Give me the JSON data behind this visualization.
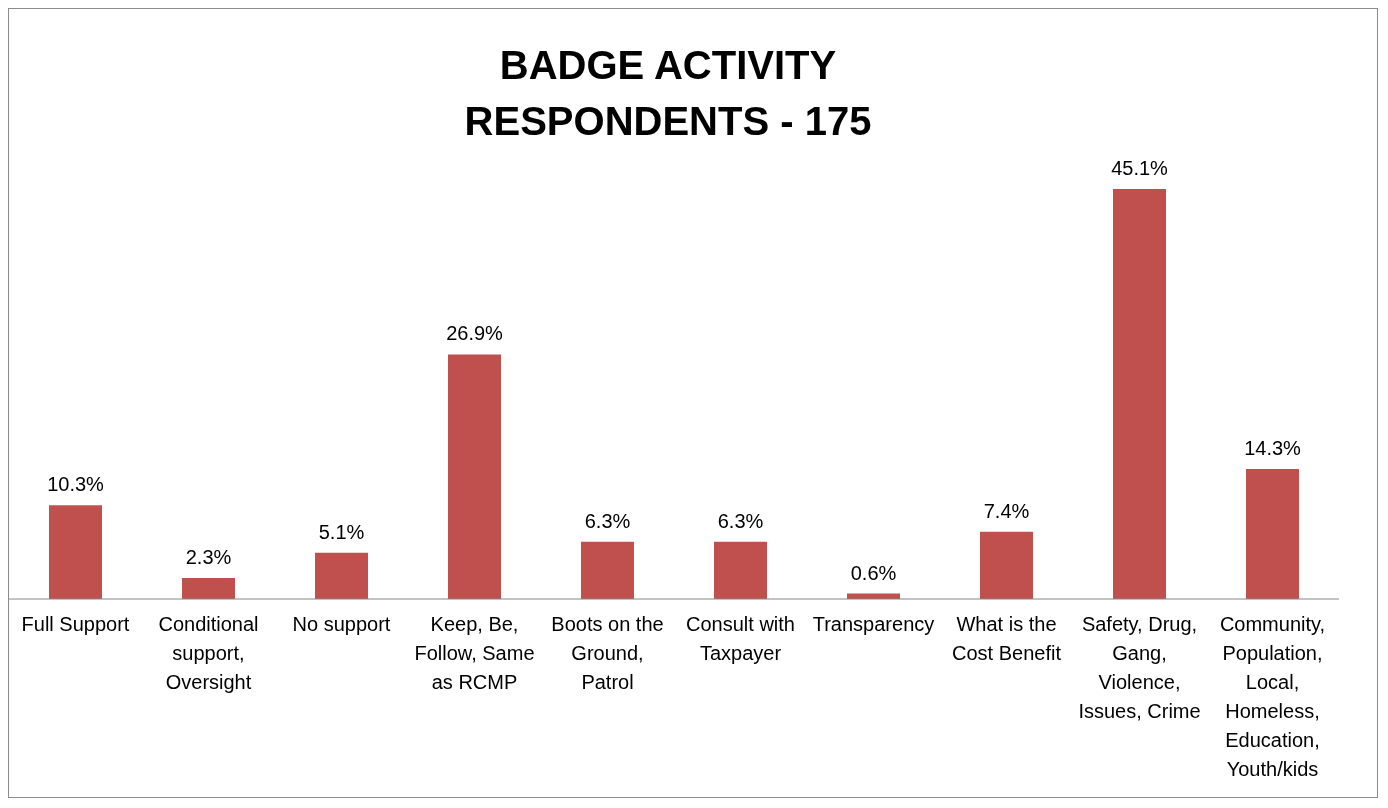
{
  "chart_data": {
    "type": "bar",
    "title": "BADGE ACTIVITY\nRESPONDENTS  - 175",
    "categories": [
      "Full Support",
      "Conditional support, Oversight",
      "No support",
      "Keep, Be, Follow, Same as RCMP",
      "Boots on the Ground, Patrol",
      "Consult with Taxpayer",
      "Transparency",
      "What is the Cost Benefit",
      "Safety, Drug, Gang, Violence, Issues, Crime",
      "Community, Population, Local, Homeless, Education, Youth/kids"
    ],
    "values": [
      10.3,
      2.3,
      5.1,
      26.9,
      6.3,
      6.3,
      0.6,
      7.4,
      45.1,
      14.3
    ],
    "value_labels": [
      "10.3%",
      "2.3%",
      "5.1%",
      "26.9%",
      "6.3%",
      "6.3%",
      "0.6%",
      "7.4%",
      "45.1%",
      "14.3%"
    ],
    "color": "#c0504d"
  }
}
